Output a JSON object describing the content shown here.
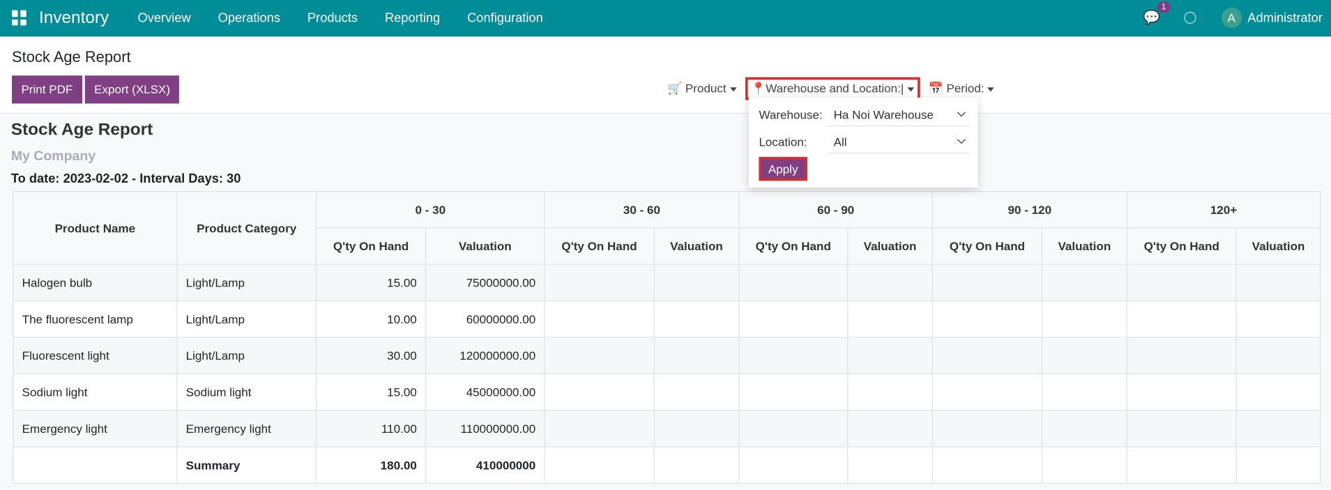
{
  "navbar": {
    "app": "Inventory",
    "menu": [
      "Overview",
      "Operations",
      "Products",
      "Reporting",
      "Configuration"
    ],
    "chat_count": "1",
    "user_initial": "A",
    "user": "Administrator",
    "color": "#018d98"
  },
  "page": {
    "title": "Stock Age Report",
    "print_label": "Print PDF",
    "export_label": "Export (XLSX)"
  },
  "filters": {
    "product": "Product",
    "warehouse_location": "Warehouse and Location:",
    "period": "Period:"
  },
  "dropdown": {
    "warehouse_label": "Warehouse:",
    "warehouse_value": "Ha Noi Warehouse",
    "location_label": "Location:",
    "location_value": "All",
    "apply": "Apply"
  },
  "report": {
    "title": "Stock Age Report",
    "company": "My Company",
    "subtitle": "To date: 2023-02-02 - Interval Days: 30",
    "headers": {
      "name": "Product Name",
      "category": "Product Category",
      "groups": [
        "0 - 30",
        "30 - 60",
        "60 - 90",
        "90 - 120",
        "120+"
      ],
      "qty": "Q'ty On Hand",
      "val": "Valuation"
    },
    "rows": [
      {
        "name": "Halogen bulb",
        "category": "Light/Lamp",
        "qty": "15.00",
        "val": "75000000.00"
      },
      {
        "name": "The fluorescent lamp",
        "category": "Light/Lamp",
        "qty": "10.00",
        "val": "60000000.00"
      },
      {
        "name": "Fluorescent light",
        "category": "Light/Lamp",
        "qty": "30.00",
        "val": "120000000.00"
      },
      {
        "name": "Sodium light",
        "category": "Sodium light",
        "qty": "15.00",
        "val": "45000000.00"
      },
      {
        "name": "Emergency light",
        "category": "Emergency light",
        "qty": "110.00",
        "val": "110000000.00"
      }
    ],
    "summary": {
      "label": "Summary",
      "qty": "180.00",
      "val": "410000000"
    }
  }
}
